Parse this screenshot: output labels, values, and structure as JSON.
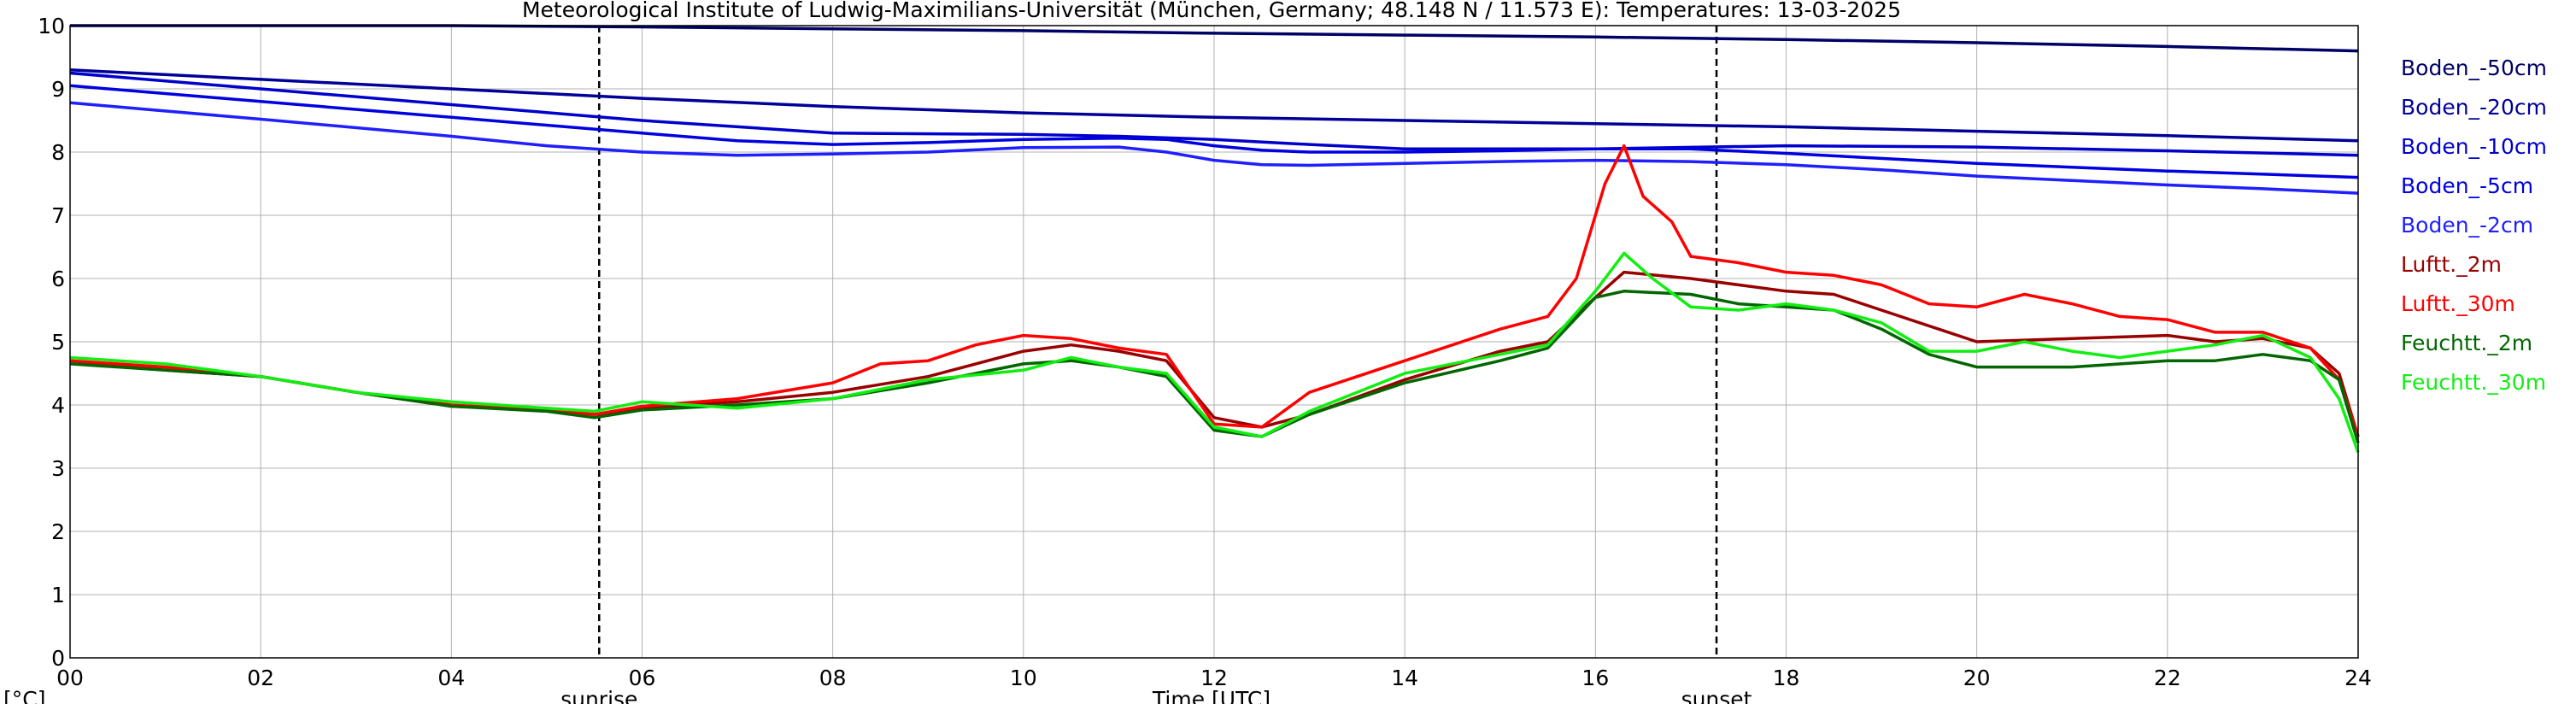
{
  "chart_data": {
    "type": "line",
    "title": "Meteorological Institute of Ludwig-Maximilians-Universität (München, Germany; 48.148 N / 11.573 E):  Temperatures: 13-03-2025",
    "xlabel": "Time [UTC]",
    "ylabel": "[°C]",
    "xlim": [
      0,
      24
    ],
    "ylim": [
      0,
      10
    ],
    "xticks": [
      0,
      2,
      4,
      6,
      8,
      10,
      12,
      14,
      16,
      18,
      20,
      22,
      24
    ],
    "xtick_labels": [
      "00",
      "02",
      "04",
      "06",
      "08",
      "10",
      "12",
      "14",
      "16",
      "18",
      "20",
      "22",
      "24"
    ],
    "yticks": [
      0,
      1,
      2,
      3,
      4,
      5,
      6,
      7,
      8,
      9,
      10
    ],
    "ytick_labels": [
      "0",
      "1",
      "2",
      "3",
      "4",
      "5",
      "6",
      "7",
      "8",
      "9",
      "10"
    ],
    "grid": true,
    "legend_position": "right",
    "annotations": [
      {
        "label": "sunrise",
        "x": 5.55
      },
      {
        "label": "sunset",
        "x": 17.27
      }
    ],
    "series": [
      {
        "name": "Boden_-50cm",
        "color": "#000066",
        "x": [
          0,
          2,
          4,
          6,
          8,
          10,
          12,
          14,
          16,
          18,
          20,
          22,
          24
        ],
        "y": [
          10.0,
          10.0,
          10.0,
          9.98,
          9.95,
          9.92,
          9.88,
          9.85,
          9.82,
          9.78,
          9.73,
          9.67,
          9.6
        ]
      },
      {
        "name": "Boden_-20cm",
        "color": "#000099",
        "x": [
          0,
          2,
          4,
          6,
          8,
          10,
          12,
          14,
          16,
          18,
          20,
          22,
          24
        ],
        "y": [
          9.3,
          9.15,
          9.0,
          8.85,
          8.72,
          8.62,
          8.55,
          8.5,
          8.45,
          8.4,
          8.33,
          8.26,
          8.18
        ]
      },
      {
        "name": "Boden_-10cm",
        "color": "#0000cc",
        "x": [
          0,
          2,
          4,
          6,
          8,
          10,
          11,
          12,
          13,
          14,
          16,
          18,
          20,
          22,
          24
        ],
        "y": [
          9.25,
          9.0,
          8.75,
          8.5,
          8.3,
          8.28,
          8.25,
          8.2,
          8.12,
          8.05,
          8.05,
          8.1,
          8.08,
          8.02,
          7.95
        ]
      },
      {
        "name": "Boden_-5cm",
        "color": "#0000e0",
        "x": [
          0,
          2,
          4,
          6,
          7,
          8,
          9,
          10,
          11,
          11.5,
          12,
          12.5,
          13,
          14,
          15,
          16,
          17,
          18,
          19,
          20,
          22,
          24
        ],
        "y": [
          9.05,
          8.8,
          8.55,
          8.3,
          8.18,
          8.12,
          8.15,
          8.2,
          8.22,
          8.2,
          8.1,
          8.03,
          8.0,
          8.0,
          8.02,
          8.05,
          8.05,
          7.98,
          7.9,
          7.82,
          7.7,
          7.6
        ]
      },
      {
        "name": "Boden_-2cm",
        "color": "#1f1fff",
        "x": [
          0,
          2,
          4,
          5,
          6,
          7,
          8,
          9,
          10,
          11,
          11.5,
          12,
          12.5,
          13,
          14,
          15,
          16,
          17,
          18,
          19,
          20,
          21,
          22,
          23,
          24
        ],
        "y": [
          8.78,
          8.52,
          8.25,
          8.1,
          8.0,
          7.95,
          7.97,
          8.0,
          8.07,
          8.08,
          8.0,
          7.87,
          7.8,
          7.79,
          7.82,
          7.85,
          7.87,
          7.85,
          7.8,
          7.72,
          7.62,
          7.55,
          7.48,
          7.42,
          7.35
        ]
      },
      {
        "name": "Luftt._2m",
        "color": "#990000",
        "x": [
          0,
          1,
          2,
          3,
          4,
          5,
          5.5,
          6,
          7,
          8,
          9,
          10,
          10.5,
          11,
          11.5,
          12,
          12.5,
          13,
          14,
          15,
          15.5,
          16,
          16.3,
          17,
          17.5,
          18,
          18.5,
          19,
          20,
          21,
          22,
          22.5,
          23,
          23.5,
          23.8,
          24
        ],
        "y": [
          4.7,
          4.55,
          4.45,
          4.2,
          3.98,
          3.92,
          3.85,
          3.95,
          4.05,
          4.2,
          4.45,
          4.85,
          4.95,
          4.85,
          4.7,
          3.8,
          3.65,
          3.85,
          4.4,
          4.85,
          5.0,
          5.7,
          6.1,
          6.0,
          5.9,
          5.8,
          5.75,
          5.5,
          5.0,
          5.05,
          5.1,
          5.0,
          5.05,
          4.9,
          4.5,
          3.5
        ]
      },
      {
        "name": "Luftt._30m",
        "color": "#ff0000",
        "x": [
          0,
          1,
          2,
          3,
          4,
          5,
          5.5,
          6,
          7,
          8,
          8.5,
          9,
          9.5,
          10,
          10.5,
          11,
          11.5,
          12,
          12.5,
          13,
          14,
          15,
          15.5,
          15.8,
          16.1,
          16.3,
          16.5,
          16.8,
          17,
          17.5,
          18,
          18.5,
          19,
          19.5,
          20,
          20.5,
          21,
          21.5,
          22,
          22.5,
          23,
          23.5,
          23.8,
          24
        ],
        "y": [
          4.7,
          4.6,
          4.45,
          4.2,
          4.0,
          3.92,
          3.85,
          3.98,
          4.1,
          4.35,
          4.65,
          4.7,
          4.95,
          5.1,
          5.05,
          4.9,
          4.8,
          3.7,
          3.65,
          4.2,
          4.7,
          5.2,
          5.4,
          6.0,
          7.5,
          8.1,
          7.3,
          6.9,
          6.35,
          6.25,
          6.1,
          6.05,
          5.9,
          5.6,
          5.55,
          5.75,
          5.6,
          5.4,
          5.35,
          5.15,
          5.15,
          4.9,
          4.4,
          3.5
        ]
      },
      {
        "name": "Feuchtt._2m",
        "color": "#006600",
        "x": [
          0,
          1,
          2,
          3,
          4,
          5,
          5.5,
          6,
          7,
          8,
          9,
          10,
          10.5,
          11,
          11.5,
          12,
          12.5,
          13,
          14,
          15,
          15.5,
          16,
          16.3,
          17,
          17.5,
          18,
          18.5,
          19,
          19.5,
          20,
          21,
          22,
          22.5,
          23,
          23.5,
          23.8,
          24
        ],
        "y": [
          4.65,
          4.55,
          4.45,
          4.2,
          3.98,
          3.9,
          3.8,
          3.92,
          4.0,
          4.1,
          4.35,
          4.65,
          4.7,
          4.6,
          4.45,
          3.6,
          3.5,
          3.85,
          4.35,
          4.7,
          4.9,
          5.7,
          5.8,
          5.75,
          5.6,
          5.55,
          5.5,
          5.2,
          4.8,
          4.6,
          4.6,
          4.7,
          4.7,
          4.8,
          4.7,
          4.4,
          3.4
        ]
      },
      {
        "name": "Feuchtt._30m",
        "color": "#11ee11",
        "x": [
          0,
          1,
          2,
          3,
          4,
          5,
          5.5,
          6,
          7,
          8,
          9,
          10,
          10.5,
          11,
          11.5,
          12,
          12.5,
          13,
          14,
          15,
          15.5,
          16,
          16.3,
          16.6,
          17,
          17.5,
          18,
          18.5,
          19,
          19.5,
          20,
          20.5,
          21,
          21.5,
          22,
          22.5,
          23,
          23.5,
          23.8,
          24
        ],
        "y": [
          4.75,
          4.65,
          4.45,
          4.2,
          4.05,
          3.95,
          3.9,
          4.05,
          3.95,
          4.1,
          4.4,
          4.55,
          4.75,
          4.6,
          4.5,
          3.65,
          3.5,
          3.9,
          4.5,
          4.8,
          4.95,
          5.8,
          6.4,
          6.0,
          5.55,
          5.5,
          5.6,
          5.5,
          5.3,
          4.85,
          4.85,
          5.0,
          4.85,
          4.75,
          4.85,
          4.95,
          5.1,
          4.75,
          4.1,
          3.25
        ]
      }
    ]
  }
}
